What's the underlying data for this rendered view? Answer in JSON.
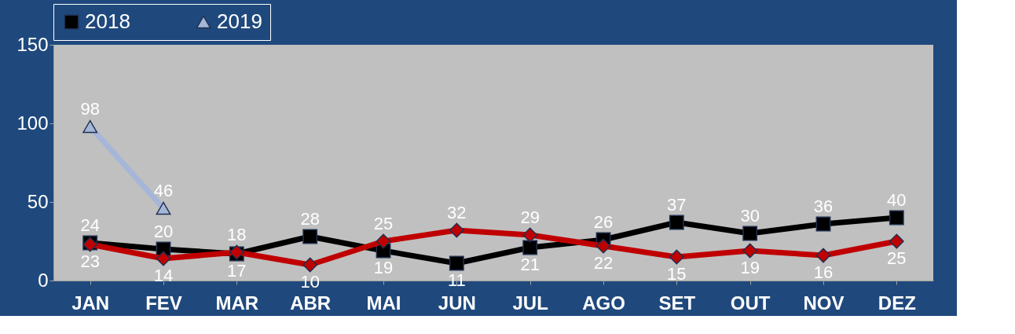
{
  "chart_data": {
    "type": "line",
    "categories": [
      "JAN",
      "FEV",
      "MAR",
      "ABR",
      "MAI",
      "JUN",
      "JUL",
      "AGO",
      "SET",
      "OUT",
      "NOV",
      "DEZ"
    ],
    "series": [
      {
        "name": "2018",
        "color": "#000000",
        "marker": "square",
        "values": [
          24,
          20,
          17,
          28,
          19,
          11,
          21,
          26,
          37,
          30,
          36,
          40
        ]
      },
      {
        "color": "#c00000",
        "marker": "diamond",
        "values": [
          23,
          14,
          18,
          10,
          25,
          32,
          29,
          22,
          15,
          19,
          16,
          25
        ]
      },
      {
        "name": "2019",
        "color": "#a5b6d8",
        "marker": "triangle",
        "values": [
          98,
          46,
          null,
          null,
          null,
          null,
          null,
          null,
          null,
          null,
          null,
          null
        ]
      }
    ],
    "ylim": [
      0,
      150
    ],
    "yticks": [
      0,
      50,
      100,
      150
    ],
    "grid": false,
    "legend": "top",
    "data_labels": true
  }
}
